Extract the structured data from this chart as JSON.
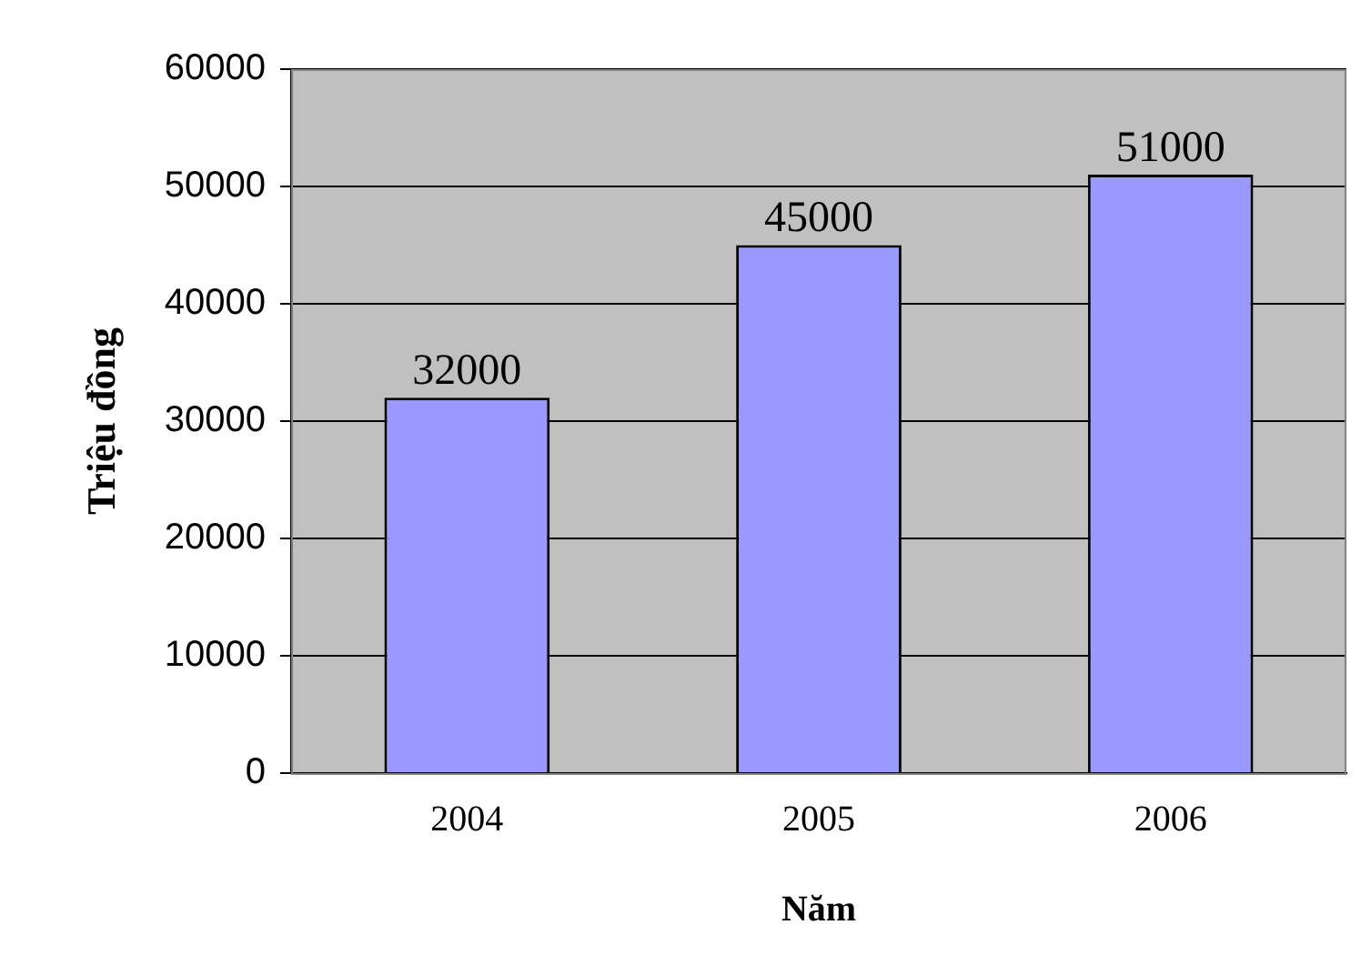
{
  "chart_data": {
    "type": "bar",
    "xlabel": "Năm",
    "ylabel": "Triệu đồng",
    "categories": [
      "2004",
      "2005",
      "2006"
    ],
    "values": [
      32000,
      45000,
      51000
    ],
    "color": "#9999ff",
    "ylim": [
      0,
      60000
    ],
    "yticks": [
      0,
      10000,
      20000,
      30000,
      40000,
      50000,
      60000
    ],
    "grid": "y",
    "legend": false,
    "data_labels": true
  }
}
